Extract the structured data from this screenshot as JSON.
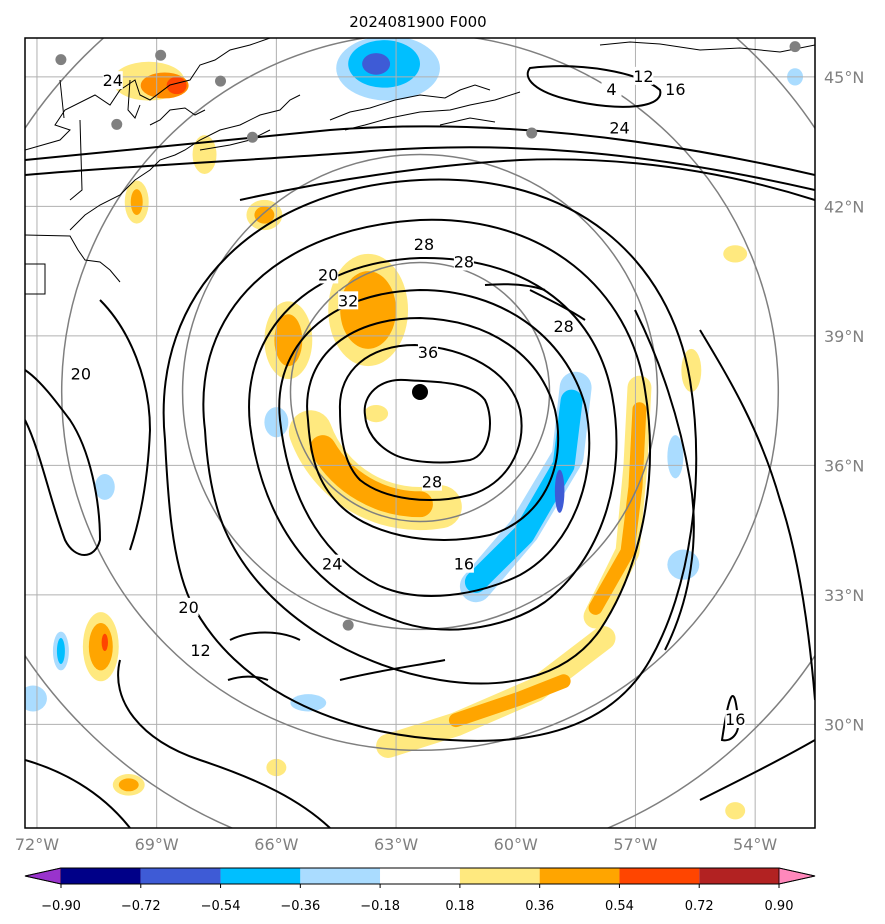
{
  "title": "2024081900 F000",
  "map": {
    "lon_range": [
      -72.3,
      -52.5
    ],
    "lat_range": [
      27.6,
      45.9
    ],
    "lon_ticks": [
      {
        "value": -72,
        "label": "72°W"
      },
      {
        "value": -69,
        "label": "69°W"
      },
      {
        "value": -66,
        "label": "66°W"
      },
      {
        "value": -63,
        "label": "63°W"
      },
      {
        "value": -60,
        "label": "60°W"
      },
      {
        "value": -57,
        "label": "57°W"
      },
      {
        "value": -54,
        "label": "54°W"
      }
    ],
    "lat_ticks": [
      {
        "value": 45,
        "label": "45°N"
      },
      {
        "value": 42,
        "label": "42°N"
      },
      {
        "value": 39,
        "label": "39°N"
      },
      {
        "value": 36,
        "label": "36°N"
      },
      {
        "value": 33,
        "label": "33°N"
      },
      {
        "value": 30,
        "label": "30°N"
      }
    ],
    "storm_center": {
      "lon": -62.4,
      "lat": 37.7
    },
    "range_rings_deg": [
      3,
      5.5,
      8.3,
      11
    ],
    "contour_labels": [
      {
        "text": "4",
        "lon": -57.6,
        "lat": 44.7
      },
      {
        "text": "12",
        "lon": -56.8,
        "lat": 45.0
      },
      {
        "text": "16",
        "lon": -56.0,
        "lat": 44.7
      },
      {
        "text": "24",
        "lon": -57.4,
        "lat": 43.8
      },
      {
        "text": "24",
        "lon": -70.1,
        "lat": 44.9
      },
      {
        "text": "28",
        "lon": -62.3,
        "lat": 41.1
      },
      {
        "text": "28",
        "lon": -61.3,
        "lat": 40.7
      },
      {
        "text": "28",
        "lon": -58.8,
        "lat": 39.2
      },
      {
        "text": "20",
        "lon": -64.7,
        "lat": 40.4
      },
      {
        "text": "32",
        "lon": -64.2,
        "lat": 39.8
      },
      {
        "text": "36",
        "lon": -62.2,
        "lat": 38.6
      },
      {
        "text": "20",
        "lon": -70.9,
        "lat": 38.1
      },
      {
        "text": "28",
        "lon": -62.1,
        "lat": 35.6
      },
      {
        "text": "24",
        "lon": -64.6,
        "lat": 33.7
      },
      {
        "text": "16",
        "lon": -61.3,
        "lat": 33.7
      },
      {
        "text": "20",
        "lon": -68.2,
        "lat": 32.7
      },
      {
        "text": "12",
        "lon": -67.9,
        "lat": 31.7
      },
      {
        "text": "16",
        "lon": -54.5,
        "lat": 30.1
      }
    ],
    "stations": [
      {
        "lon": -71.4,
        "lat": 45.4
      },
      {
        "lon": -68.9,
        "lat": 45.5
      },
      {
        "lon": -67.4,
        "lat": 44.9
      },
      {
        "lon": -70.0,
        "lat": 43.9
      },
      {
        "lon": -66.6,
        "lat": 43.6
      },
      {
        "lon": -59.6,
        "lat": 43.7
      },
      {
        "lon": -53.0,
        "lat": 45.7
      },
      {
        "lon": -64.2,
        "lat": 32.3
      }
    ],
    "colors": {
      "contour": "#000000",
      "grid": "#b0b0b0",
      "ring": "#7f7f7f",
      "station": "#808080",
      "center": "#000000"
    }
  },
  "fill_blobs": [
    {
      "level": 0.36,
      "shape": "arc",
      "lon": -62.4,
      "lat": 37.7,
      "r": 2.7,
      "a0": 200,
      "a1": 280,
      "w": 1.0,
      "color": "#ffe97f"
    },
    {
      "level": 0.54,
      "shape": "arc",
      "lon": -62.4,
      "lat": 37.7,
      "r": 2.6,
      "a0": 210,
      "a1": 270,
      "w": 0.6,
      "color": "#ffa500"
    },
    {
      "level": 0.36,
      "shape": "ellipse",
      "lon": -63.7,
      "lat": 39.6,
      "rx": 1.0,
      "ry": 1.3,
      "color": "#ffe97f"
    },
    {
      "level": 0.54,
      "shape": "ellipse",
      "lon": -63.7,
      "lat": 39.6,
      "rx": 0.7,
      "ry": 0.9,
      "color": "#ffa500"
    },
    {
      "level": 0.36,
      "shape": "ellipse",
      "lon": -65.7,
      "lat": 38.9,
      "rx": 0.6,
      "ry": 0.9,
      "color": "#ffe97f"
    },
    {
      "level": 0.54,
      "shape": "ellipse",
      "lon": -65.7,
      "lat": 38.9,
      "rx": 0.35,
      "ry": 0.6,
      "color": "#ffa500"
    },
    {
      "level": -0.36,
      "shape": "band",
      "points": [
        [
          -58.5,
          37.8
        ],
        [
          -58.7,
          36.2
        ],
        [
          -59.8,
          34.5
        ],
        [
          -61.0,
          33.2
        ]
      ],
      "w": 0.8,
      "color": "#aadcff"
    },
    {
      "level": -0.54,
      "shape": "band",
      "points": [
        [
          -58.6,
          37.5
        ],
        [
          -58.8,
          36.0
        ],
        [
          -59.8,
          34.4
        ],
        [
          -61.0,
          33.3
        ]
      ],
      "w": 0.55,
      "color": "#00bfff"
    },
    {
      "level": -0.72,
      "shape": "ellipse",
      "lon": -58.9,
      "lat": 35.4,
      "rx": 0.12,
      "ry": 0.5,
      "color": "#3e5bd6"
    },
    {
      "level": 0.36,
      "shape": "band",
      "points": [
        [
          -56.9,
          37.8
        ],
        [
          -57.0,
          36.0
        ],
        [
          -57.2,
          34.0
        ],
        [
          -58.0,
          32.5
        ]
      ],
      "w": 0.6,
      "color": "#ffe97f"
    },
    {
      "level": 0.54,
      "shape": "band",
      "points": [
        [
          -56.9,
          37.3
        ],
        [
          -57.0,
          35.5
        ],
        [
          -57.2,
          34.0
        ],
        [
          -58.0,
          32.7
        ]
      ],
      "w": 0.35,
      "color": "#ffa500"
    },
    {
      "level": 0.36,
      "shape": "band",
      "points": [
        [
          -57.8,
          32.0
        ],
        [
          -59.5,
          30.8
        ],
        [
          -61.5,
          30.0
        ],
        [
          -63.2,
          29.5
        ]
      ],
      "w": 0.6,
      "color": "#ffe97f"
    },
    {
      "level": 0.54,
      "shape": "band",
      "points": [
        [
          -58.8,
          31.0
        ],
        [
          -59.9,
          30.6
        ],
        [
          -61.5,
          30.1
        ]
      ],
      "w": 0.35,
      "color": "#ffa500"
    },
    {
      "level": -0.36,
      "shape": "ellipse",
      "lon": -63.2,
      "lat": 45.2,
      "rx": 1.3,
      "ry": 0.75,
      "color": "#aadcff"
    },
    {
      "level": -0.54,
      "shape": "ellipse",
      "lon": -63.3,
      "lat": 45.3,
      "rx": 0.9,
      "ry": 0.55,
      "color": "#00bfff"
    },
    {
      "level": -0.72,
      "shape": "ellipse",
      "lon": -63.5,
      "lat": 45.3,
      "rx": 0.35,
      "ry": 0.25,
      "color": "#3e5bd6"
    },
    {
      "level": 0.36,
      "shape": "ellipse",
      "lon": -69.2,
      "lat": 44.9,
      "rx": 0.9,
      "ry": 0.45,
      "color": "#ffe97f"
    },
    {
      "level": 0.54,
      "shape": "ellipse",
      "lon": -68.8,
      "lat": 44.8,
      "rx": 0.6,
      "ry": 0.3,
      "color": "#ff8c00"
    },
    {
      "level": 0.72,
      "shape": "ellipse",
      "lon": -68.5,
      "lat": 44.8,
      "rx": 0.25,
      "ry": 0.2,
      "color": "#ff4500"
    },
    {
      "level": 0.36,
      "shape": "ellipse",
      "lon": -69.5,
      "lat": 42.1,
      "rx": 0.3,
      "ry": 0.5,
      "color": "#ffe97f"
    },
    {
      "level": 0.54,
      "shape": "ellipse",
      "lon": -69.5,
      "lat": 42.1,
      "rx": 0.15,
      "ry": 0.3,
      "color": "#ffa500"
    },
    {
      "level": 0.36,
      "shape": "ellipse",
      "lon": -66.3,
      "lat": 41.8,
      "rx": 0.45,
      "ry": 0.35,
      "color": "#ffe97f"
    },
    {
      "level": 0.54,
      "shape": "ellipse",
      "lon": -66.3,
      "lat": 41.8,
      "rx": 0.25,
      "ry": 0.2,
      "color": "#ffa500"
    },
    {
      "level": 0.36,
      "shape": "ellipse",
      "lon": -70.4,
      "lat": 31.8,
      "rx": 0.45,
      "ry": 0.8,
      "color": "#ffe97f"
    },
    {
      "level": 0.54,
      "shape": "ellipse",
      "lon": -70.4,
      "lat": 31.8,
      "rx": 0.3,
      "ry": 0.55,
      "color": "#ffa500"
    },
    {
      "level": 0.72,
      "shape": "ellipse",
      "lon": -70.3,
      "lat": 31.9,
      "rx": 0.08,
      "ry": 0.2,
      "color": "#ff4500"
    },
    {
      "level": -0.36,
      "shape": "ellipse",
      "lon": -71.4,
      "lat": 31.7,
      "rx": 0.2,
      "ry": 0.45,
      "color": "#aadcff"
    },
    {
      "level": -0.54,
      "shape": "ellipse",
      "lon": -71.4,
      "lat": 31.7,
      "rx": 0.1,
      "ry": 0.3,
      "color": "#00bfff"
    },
    {
      "level": -0.36,
      "shape": "ellipse",
      "lon": -65.2,
      "lat": 30.5,
      "rx": 0.45,
      "ry": 0.2,
      "color": "#aadcff"
    },
    {
      "level": -0.36,
      "shape": "ellipse",
      "lon": -72.1,
      "lat": 30.6,
      "rx": 0.35,
      "ry": 0.3,
      "color": "#aadcff"
    },
    {
      "level": 0.36,
      "shape": "ellipse",
      "lon": -55.6,
      "lat": 38.2,
      "rx": 0.25,
      "ry": 0.5,
      "color": "#ffe97f"
    },
    {
      "level": 0.36,
      "shape": "ellipse",
      "lon": -54.5,
      "lat": 40.9,
      "rx": 0.3,
      "ry": 0.2,
      "color": "#ffe97f"
    },
    {
      "level": -0.36,
      "shape": "ellipse",
      "lon": -56.0,
      "lat": 36.2,
      "rx": 0.2,
      "ry": 0.5,
      "color": "#aadcff"
    },
    {
      "level": -0.36,
      "shape": "ellipse",
      "lon": -55.8,
      "lat": 33.7,
      "rx": 0.4,
      "ry": 0.35,
      "color": "#aadcff"
    },
    {
      "level": -0.36,
      "shape": "ellipse",
      "lon": -66.0,
      "lat": 37.0,
      "rx": 0.3,
      "ry": 0.35,
      "color": "#aadcff"
    },
    {
      "level": 0.36,
      "shape": "ellipse",
      "lon": -69.7,
      "lat": 28.6,
      "rx": 0.4,
      "ry": 0.25,
      "color": "#ffe97f"
    },
    {
      "level": 0.54,
      "shape": "ellipse",
      "lon": -69.7,
      "lat": 28.6,
      "rx": 0.25,
      "ry": 0.15,
      "color": "#ffa500"
    },
    {
      "level": 0.36,
      "shape": "ellipse",
      "lon": -66.0,
      "lat": 29.0,
      "rx": 0.25,
      "ry": 0.2,
      "color": "#ffe97f"
    },
    {
      "level": -0.36,
      "shape": "ellipse",
      "lon": -53.0,
      "lat": 45.0,
      "rx": 0.2,
      "ry": 0.2,
      "color": "#aadcff"
    },
    {
      "level": -0.36,
      "shape": "ellipse",
      "lon": -70.3,
      "lat": 35.5,
      "rx": 0.25,
      "ry": 0.3,
      "color": "#aadcff"
    },
    {
      "level": 0.36,
      "shape": "ellipse",
      "lon": -54.5,
      "lat": 28.0,
      "rx": 0.25,
      "ry": 0.2,
      "color": "#ffe97f"
    },
    {
      "level": 0.36,
      "shape": "ellipse",
      "lon": -63.5,
      "lat": 37.2,
      "rx": 0.3,
      "ry": 0.2,
      "color": "#ffe97f"
    },
    {
      "level": 0.36,
      "shape": "ellipse",
      "lon": -67.8,
      "lat": 43.2,
      "rx": 0.3,
      "ry": 0.45,
      "color": "#ffe97f"
    }
  ],
  "colorbar": {
    "ticks": [
      "−0.90",
      "−0.72",
      "−0.54",
      "−0.36",
      "−0.18",
      "0.18",
      "0.36",
      "0.54",
      "0.72",
      "0.90"
    ],
    "low_extend_color": "#9933cc",
    "high_extend_color": "#ff88bb",
    "bin_colors": [
      "#000088",
      "#3e5bd6",
      "#00bfff",
      "#aadcff",
      "#ffffff",
      "#ffe97f",
      "#ffa500",
      "#ff4500",
      "#b22222"
    ]
  }
}
